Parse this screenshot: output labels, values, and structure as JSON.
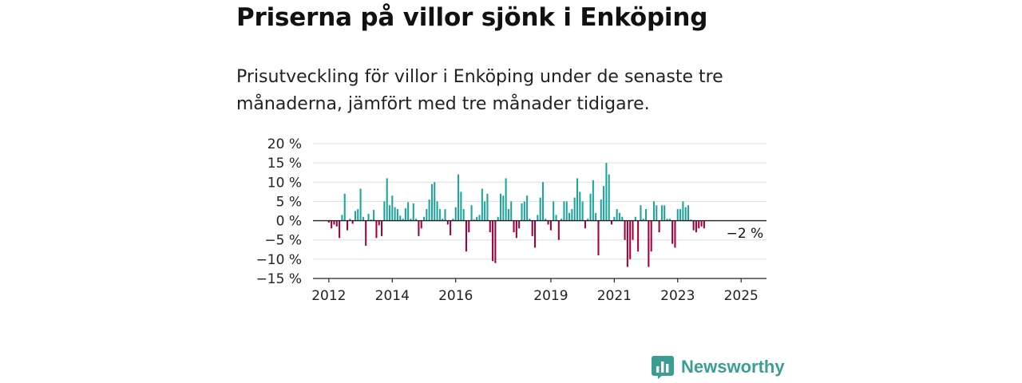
{
  "title": "Priserna på villor sjönk i Enköping",
  "subtitle": "Prisutveckling för villor i Enköping under de senaste tre månaderna, jämfört med tre månader tidigare.",
  "brand": {
    "name": "Newsworthy",
    "icon": "bar-chart-logo-icon"
  },
  "colors": {
    "positive": "#1ba39c",
    "negative": "#a3003b",
    "grid": "#dddddd",
    "text": "#222222"
  },
  "chart_data": {
    "type": "bar",
    "ylim": [
      -15,
      20
    ],
    "yticks": [
      20,
      15,
      10,
      5,
      0,
      -5,
      -10,
      -15
    ],
    "ytick_labels": [
      "20 %",
      "15 %",
      "10 %",
      "5 %",
      "0 %",
      "−5 %",
      "−10 %",
      "−15 %"
    ],
    "xlim": [
      2011.5,
      2025.8
    ],
    "xticks": [
      2012,
      2014,
      2016,
      2019,
      2021,
      2023,
      2025
    ],
    "xtick_labels": [
      "2012",
      "2014",
      "2016",
      "2019",
      "2021",
      "2023",
      "2025"
    ],
    "grid": true,
    "annotation": {
      "text": "−2 %",
      "x": 2025.0,
      "y": -2
    },
    "start": 2012.0,
    "step": 0.08333,
    "values": [
      -0.5,
      -2,
      -1,
      -1.5,
      -4.5,
      1.5,
      7,
      -2.5,
      0.5,
      -0.8,
      2.5,
      3,
      8.3,
      1,
      -6.5,
      1.8,
      0.3,
      2.8,
      -4.5,
      -1.2,
      -4,
      5,
      11,
      4,
      6.5,
      3.5,
      3,
      1.3,
      0.5,
      3.2,
      4.8,
      0.5,
      4.5,
      0.5,
      -4,
      -2,
      1,
      3,
      5.5,
      9.5,
      10,
      5,
      3,
      0.5,
      3,
      -1,
      -3.8,
      0.5,
      3.5,
      12,
      7.5,
      3,
      -8,
      -3,
      4,
      0.3,
      1,
      1.5,
      8.3,
      5,
      7,
      -3,
      -10.5,
      -11,
      1,
      7,
      6.5,
      11,
      3,
      5,
      -3,
      -4.5,
      -2,
      4.5,
      5,
      6.5,
      0.5,
      -4,
      -7,
      1.5,
      6,
      10,
      0.5,
      -1,
      -2.5,
      5,
      1.5,
      -5,
      0.5,
      5,
      5,
      2,
      3,
      6,
      11,
      7.5,
      5,
      -2,
      0.5,
      7,
      10.5,
      2,
      -9,
      5.5,
      9,
      15,
      12,
      -1,
      1,
      3,
      2,
      1,
      -5,
      -12,
      -10,
      -5,
      1,
      -8,
      4,
      0.5,
      3,
      -12,
      -8,
      5,
      4,
      -3,
      4,
      4,
      0.5,
      0.5,
      -6,
      -7,
      3,
      3,
      5,
      3.5,
      4,
      0.3,
      -2.5,
      -3,
      -2,
      -1.5,
      -2
    ]
  }
}
